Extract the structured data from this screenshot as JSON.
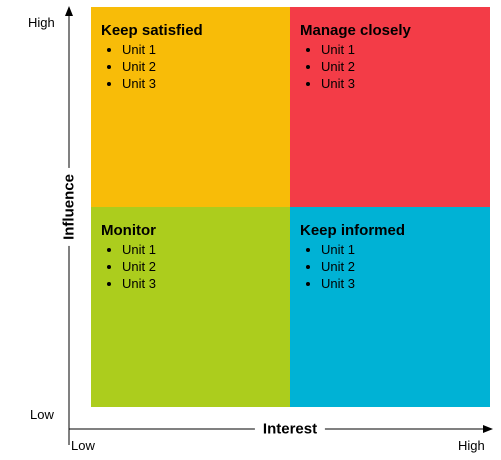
{
  "axes": {
    "y_title": "Influence",
    "x_title": "Interest",
    "y_high": "High",
    "y_low": "Low",
    "x_low": "Low",
    "x_high": "High"
  },
  "quadrants": {
    "top_left": {
      "title": "Keep satisfied",
      "color": "#F8BC08",
      "items": [
        "Unit 1",
        "Unit 2",
        "Unit 3"
      ]
    },
    "top_right": {
      "title": "Manage closely",
      "color": "#F33C47",
      "items": [
        "Unit 1",
        "Unit 2",
        "Unit 3"
      ]
    },
    "bottom_left": {
      "title": "Monitor",
      "color": "#ACCD1D",
      "items": [
        "Unit 1",
        "Unit 2",
        "Unit 3"
      ]
    },
    "bottom_right": {
      "title": "Keep informed",
      "color": "#00B2D5",
      "items": [
        "Unit 1",
        "Unit 2",
        "Unit 3"
      ]
    }
  }
}
